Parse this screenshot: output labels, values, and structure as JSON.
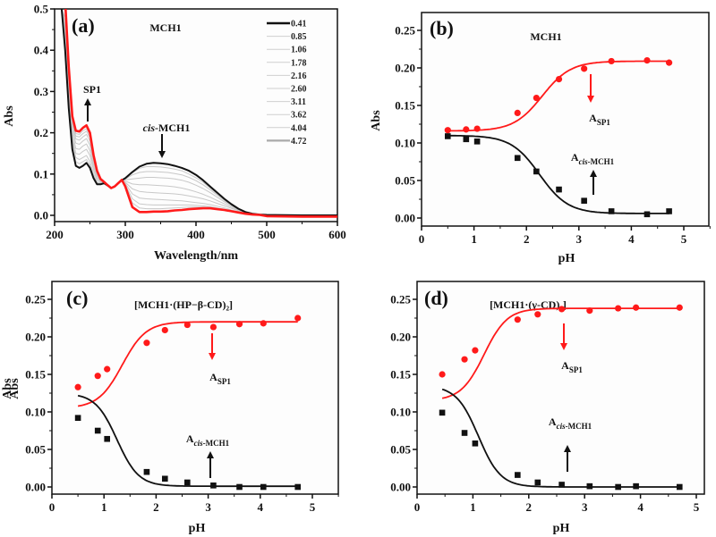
{
  "chart_data": [
    {
      "id": "a",
      "type": "line",
      "panel_label": "(a)",
      "title": "MCH1",
      "xlabel": "Wavelength/nm",
      "ylabel": "Abs",
      "xlim": [
        200,
        600
      ],
      "ylim": [
        0.0,
        0.5
      ],
      "xticks": [
        200,
        300,
        400,
        500,
        600
      ],
      "xtick_labels": [
        "200",
        "300",
        "400",
        "500",
        "600"
      ],
      "yticks": [
        0.0,
        0.1,
        0.2,
        0.3,
        0.4,
        0.5
      ],
      "ytick_labels": [
        "0.0",
        "0.1",
        "0.2",
        "0.3",
        "0.4",
        "0.5"
      ],
      "legend_title": "",
      "legend_position": "top-right",
      "legend": [
        "0.41",
        "0.85",
        "1.06",
        "1.78",
        "2.16",
        "2.60",
        "3.11",
        "3.62",
        "4.04",
        "4.72"
      ],
      "annotations": [
        {
          "text": "SP1",
          "direction": "up",
          "x": 247,
          "y": 0.24
        },
        {
          "text_italic": "cis",
          "text": "-MCH1",
          "direction": "down",
          "x": 350,
          "y": 0.13
        }
      ],
      "series_colors": {
        "first": "#111111",
        "middle": "#c8c8c8",
        "last": "#ff1a1a"
      },
      "x": [
        200,
        210,
        215,
        220,
        225,
        230,
        235,
        240,
        245,
        250,
        255,
        260,
        265,
        270,
        275,
        280,
        285,
        290,
        295,
        300,
        310,
        320,
        330,
        340,
        350,
        360,
        370,
        380,
        390,
        400,
        410,
        420,
        430,
        440,
        450,
        460,
        470,
        480,
        490,
        500,
        550,
        600
      ],
      "series": [
        {
          "name": "0.41",
          "values": [
            0.52,
            0.5,
            0.4,
            0.26,
            0.16,
            0.12,
            0.115,
            0.12,
            0.127,
            0.115,
            0.09,
            0.075,
            0.075,
            0.078,
            0.072,
            0.066,
            0.07,
            0.078,
            0.085,
            0.09,
            0.105,
            0.118,
            0.125,
            0.127,
            0.126,
            0.124,
            0.12,
            0.115,
            0.108,
            0.098,
            0.085,
            0.07,
            0.055,
            0.04,
            0.027,
            0.016,
            0.008,
            0.004,
            0.002,
            0.001,
            0.0,
            0.0
          ]
        },
        {
          "name": "0.85",
          "values": [
            0.52,
            0.5,
            0.41,
            0.27,
            0.17,
            0.13,
            0.125,
            0.13,
            0.135,
            0.122,
            0.095,
            0.078,
            0.077,
            0.078,
            0.072,
            0.066,
            0.07,
            0.078,
            0.085,
            0.089,
            0.103,
            0.114,
            0.118,
            0.118,
            0.117,
            0.115,
            0.112,
            0.108,
            0.1,
            0.091,
            0.08,
            0.066,
            0.052,
            0.038,
            0.026,
            0.015,
            0.008,
            0.004,
            0.002,
            0.001,
            0.0,
            0.0
          ]
        },
        {
          "name": "1.06",
          "values": [
            0.52,
            0.5,
            0.42,
            0.28,
            0.18,
            0.14,
            0.135,
            0.14,
            0.145,
            0.13,
            0.1,
            0.08,
            0.078,
            0.079,
            0.072,
            0.066,
            0.07,
            0.078,
            0.085,
            0.088,
            0.098,
            0.104,
            0.106,
            0.106,
            0.105,
            0.104,
            0.101,
            0.098,
            0.092,
            0.084,
            0.074,
            0.062,
            0.049,
            0.036,
            0.025,
            0.015,
            0.008,
            0.004,
            0.002,
            0.001,
            0.0,
            0.0
          ]
        },
        {
          "name": "1.78",
          "values": [
            0.52,
            0.5,
            0.43,
            0.29,
            0.19,
            0.15,
            0.148,
            0.155,
            0.16,
            0.145,
            0.11,
            0.085,
            0.08,
            0.08,
            0.073,
            0.066,
            0.07,
            0.078,
            0.085,
            0.086,
            0.088,
            0.09,
            0.092,
            0.092,
            0.091,
            0.09,
            0.088,
            0.085,
            0.08,
            0.073,
            0.065,
            0.055,
            0.044,
            0.033,
            0.023,
            0.014,
            0.007,
            0.004,
            0.002,
            0.001,
            0.0,
            0.0
          ]
        },
        {
          "name": "2.16",
          "values": [
            0.52,
            0.5,
            0.44,
            0.3,
            0.2,
            0.162,
            0.16,
            0.168,
            0.173,
            0.157,
            0.118,
            0.09,
            0.082,
            0.08,
            0.073,
            0.066,
            0.07,
            0.078,
            0.085,
            0.083,
            0.076,
            0.074,
            0.074,
            0.073,
            0.072,
            0.071,
            0.069,
            0.066,
            0.062,
            0.057,
            0.051,
            0.044,
            0.036,
            0.028,
            0.02,
            0.012,
            0.006,
            0.003,
            0.002,
            0.001,
            0.0,
            0.0
          ]
        },
        {
          "name": "2.60",
          "values": [
            0.52,
            0.5,
            0.45,
            0.31,
            0.21,
            0.175,
            0.172,
            0.18,
            0.186,
            0.17,
            0.127,
            0.095,
            0.083,
            0.081,
            0.073,
            0.066,
            0.07,
            0.078,
            0.085,
            0.08,
            0.064,
            0.058,
            0.056,
            0.055,
            0.054,
            0.053,
            0.052,
            0.05,
            0.047,
            0.044,
            0.04,
            0.035,
            0.029,
            0.023,
            0.017,
            0.011,
            0.006,
            0.003,
            0.002,
            0.001,
            0.0,
            0.0
          ]
        },
        {
          "name": "3.11",
          "values": [
            0.52,
            0.5,
            0.46,
            0.32,
            0.22,
            0.185,
            0.182,
            0.19,
            0.196,
            0.18,
            0.133,
            0.1,
            0.085,
            0.081,
            0.073,
            0.066,
            0.07,
            0.078,
            0.085,
            0.077,
            0.052,
            0.042,
            0.04,
            0.039,
            0.038,
            0.037,
            0.036,
            0.035,
            0.033,
            0.031,
            0.029,
            0.026,
            0.022,
            0.018,
            0.013,
            0.009,
            0.005,
            0.003,
            0.002,
            0.001,
            0.0,
            0.0
          ]
        },
        {
          "name": "3.62",
          "values": [
            0.52,
            0.5,
            0.47,
            0.33,
            0.225,
            0.192,
            0.19,
            0.198,
            0.204,
            0.188,
            0.138,
            0.103,
            0.086,
            0.081,
            0.073,
            0.066,
            0.07,
            0.078,
            0.085,
            0.074,
            0.04,
            0.028,
            0.026,
            0.025,
            0.025,
            0.025,
            0.025,
            0.025,
            0.025,
            0.024,
            0.023,
            0.021,
            0.018,
            0.015,
            0.011,
            0.008,
            0.005,
            0.003,
            0.002,
            0.001,
            0.0,
            0.0
          ]
        },
        {
          "name": "4.04",
          "values": [
            0.52,
            0.5,
            0.48,
            0.34,
            0.23,
            0.198,
            0.196,
            0.205,
            0.21,
            0.194,
            0.142,
            0.105,
            0.087,
            0.081,
            0.073,
            0.066,
            0.07,
            0.078,
            0.085,
            0.072,
            0.03,
            0.018,
            0.016,
            0.016,
            0.016,
            0.017,
            0.018,
            0.019,
            0.02,
            0.02,
            0.02,
            0.019,
            0.017,
            0.014,
            0.011,
            0.008,
            0.005,
            0.003,
            0.002,
            0.001,
            0.0,
            0.0
          ]
        },
        {
          "name": "4.72",
          "values": [
            0.52,
            0.52,
            0.52,
            0.36,
            0.24,
            0.205,
            0.203,
            0.212,
            0.218,
            0.2,
            0.146,
            0.108,
            0.088,
            0.081,
            0.073,
            0.066,
            0.07,
            0.078,
            0.086,
            0.07,
            0.02,
            0.008,
            0.008,
            0.009,
            0.009,
            0.01,
            0.012,
            0.013,
            0.015,
            0.016,
            0.017,
            0.017,
            0.015,
            0.013,
            0.01,
            0.007,
            0.004,
            0.002,
            0.001,
            -0.002,
            -0.003,
            -0.003
          ]
        }
      ]
    },
    {
      "id": "b",
      "type": "scatter",
      "panel_label": "(b)",
      "title": "MCH1",
      "xlabel": "pH",
      "ylabel": "Abs",
      "xlim": [
        0,
        5.5
      ],
      "ylim": [
        -0.01,
        0.275
      ],
      "xticks": [
        0,
        1,
        2,
        3,
        4,
        5
      ],
      "xtick_labels": [
        "0",
        "1",
        "2",
        "3",
        "4",
        "5"
      ],
      "yticks": [
        0.0,
        0.05,
        0.1,
        0.15,
        0.2,
        0.25
      ],
      "ytick_labels": [
        "0.00",
        "0.05",
        "0.10",
        "0.15",
        "0.20",
        "0.25"
      ],
      "series": [
        {
          "name": "A_SP1",
          "color": "#ff1a1a",
          "marker": "circle",
          "x": [
            0.5,
            0.85,
            1.06,
            1.83,
            2.19,
            2.62,
            3.1,
            3.62,
            4.3,
            4.72
          ],
          "values": [
            0.117,
            0.118,
            0.119,
            0.14,
            0.16,
            0.185,
            0.199,
            0.209,
            0.21,
            0.207
          ],
          "fit": {
            "base": 0.116,
            "top": 0.209,
            "pKa": 2.3,
            "slope": 1.6
          }
        },
        {
          "name": "A_cis-MCH1",
          "color": "#111111",
          "marker": "square",
          "x": [
            0.5,
            0.85,
            1.06,
            1.83,
            2.19,
            2.62,
            3.1,
            3.62,
            4.3,
            4.72
          ],
          "values": [
            0.109,
            0.105,
            0.102,
            0.08,
            0.062,
            0.038,
            0.023,
            0.009,
            0.005,
            0.009
          ],
          "fit": {
            "base": 0.11,
            "top": 0.006,
            "pKa": 2.25,
            "slope": 1.6
          }
        }
      ],
      "annotations": [
        {
          "label": "A",
          "sub": "SP1",
          "sub_italic": "",
          "arrow": "down",
          "color": "#ff1a1a"
        },
        {
          "label": "A",
          "sub": "-MCH1",
          "sub_italic": "cis",
          "arrow": "up",
          "color": "#111111"
        }
      ]
    },
    {
      "id": "c",
      "type": "scatter",
      "panel_label": "(c)",
      "title": "[MCH1·(HP−β-CD)₂]",
      "xlabel": "pH",
      "ylabel": "Abs",
      "xlim": [
        0,
        5.5
      ],
      "ylim": [
        -0.01,
        0.275
      ],
      "xticks": [
        0,
        1,
        2,
        3,
        4,
        5
      ],
      "xtick_labels": [
        "0",
        "1",
        "2",
        "3",
        "4",
        "5"
      ],
      "yticks": [
        0.0,
        0.05,
        0.1,
        0.15,
        0.2,
        0.25
      ],
      "ytick_labels": [
        "0.00",
        "0.05",
        "0.10",
        "0.15",
        "0.20",
        "0.25"
      ],
      "series": [
        {
          "name": "A_SP1",
          "color": "#ff1a1a",
          "marker": "circle",
          "x": [
            0.5,
            0.88,
            1.06,
            1.82,
            2.17,
            2.6,
            3.1,
            3.6,
            4.06,
            4.72
          ],
          "values": [
            0.133,
            0.148,
            0.157,
            0.192,
            0.209,
            0.216,
            0.213,
            0.217,
            0.218,
            0.225
          ],
          "fit": {
            "base": 0.105,
            "top": 0.22,
            "pKa": 1.35,
            "slope": 1.9
          }
        },
        {
          "name": "A_cis-MCH1",
          "color": "#111111",
          "marker": "square",
          "x": [
            0.5,
            0.88,
            1.06,
            1.82,
            2.17,
            2.6,
            3.1,
            3.6,
            4.06,
            4.72
          ],
          "values": [
            0.092,
            0.075,
            0.064,
            0.02,
            0.011,
            0.006,
            0.002,
            0.0,
            0.0,
            0.0
          ],
          "fit": {
            "base": 0.125,
            "top": 0.001,
            "pKa": 1.25,
            "slope": 2.1
          }
        }
      ],
      "annotations": [
        {
          "label": "A",
          "sub": "SP1",
          "sub_italic": "",
          "arrow": "down",
          "color": "#ff1a1a"
        },
        {
          "label": "A",
          "sub": "-MCH1",
          "sub_italic": "cis",
          "arrow": "up",
          "color": "#111111"
        }
      ]
    },
    {
      "id": "d",
      "type": "scatter",
      "panel_label": "(d)",
      "title": "[MCH1·(γ-CD)₂]",
      "xlabel": "pH",
      "ylabel": "Abs",
      "xlim": [
        0,
        5.5
      ],
      "ylim": [
        -0.01,
        0.275
      ],
      "xticks": [
        0,
        1,
        2,
        3,
        4,
        5
      ],
      "xtick_labels": [
        "0",
        "1",
        "2",
        "3",
        "4",
        "5"
      ],
      "yticks": [
        0.0,
        0.05,
        0.1,
        0.15,
        0.2,
        0.25
      ],
      "ytick_labels": [
        "0.00",
        "0.05",
        "0.10",
        "0.15",
        "0.20",
        "0.25"
      ],
      "series": [
        {
          "name": "A_SP1",
          "color": "#ff1a1a",
          "marker": "circle",
          "x": [
            0.45,
            0.85,
            1.04,
            1.8,
            2.16,
            2.59,
            3.09,
            3.6,
            3.92,
            4.7
          ],
          "values": [
            0.15,
            0.17,
            0.182,
            0.223,
            0.23,
            0.237,
            0.235,
            0.238,
            0.239,
            0.239
          ],
          "fit": {
            "base": 0.115,
            "top": 0.238,
            "pKa": 1.2,
            "slope": 2.1
          }
        },
        {
          "name": "A_cis-MCH1",
          "color": "#111111",
          "marker": "square",
          "x": [
            0.45,
            0.85,
            1.04,
            1.8,
            2.16,
            2.59,
            3.09,
            3.6,
            3.92,
            4.7
          ],
          "values": [
            0.099,
            0.072,
            0.058,
            0.016,
            0.006,
            0.003,
            0.001,
            0.0,
            0.001,
            0.0
          ],
          "fit": {
            "base": 0.135,
            "top": 0.0,
            "pKa": 1.1,
            "slope": 2.2
          }
        }
      ],
      "annotations": [
        {
          "label": "A",
          "sub": "SP1",
          "sub_italic": "",
          "arrow": "down",
          "color": "#ff1a1a"
        },
        {
          "label": "A",
          "sub": "-MCH1",
          "sub_italic": "cis",
          "arrow": "up",
          "color": "#111111"
        }
      ]
    }
  ]
}
